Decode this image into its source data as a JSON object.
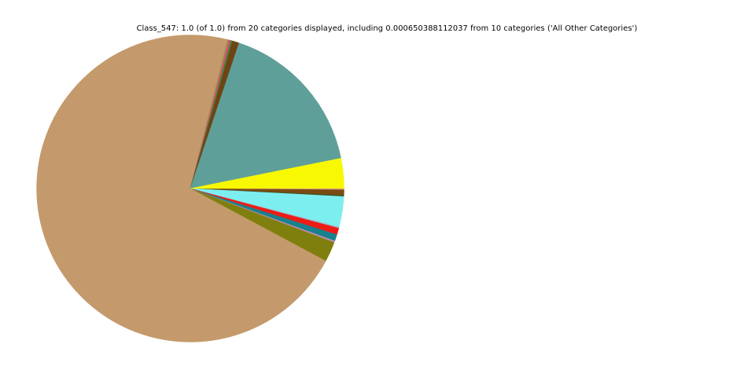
{
  "title": {
    "text": "Class_547: 1.0 (of 1.0) from 20 categories displayed, including 0.000650388112037 from 10 categories ('All Other Categories')"
  },
  "background_color": "#ffffff",
  "chart_data": {
    "type": "pie",
    "title": "Class_547: 1.0 (of 1.0) from 20 categories displayed, including 0.000650388112037 from 10 categories ('All Other Categories')",
    "legend_position": "none",
    "labels_shown": false,
    "start_angle_deg": 0,
    "direction": "clockwise",
    "slices": [
      {
        "fraction": 0.00139,
        "color": "#cc8899"
      },
      {
        "fraction": 0.00556,
        "color": "#7b4a12"
      },
      {
        "fraction": 0.00139,
        "color": "#435022"
      },
      {
        "fraction": 0.03194,
        "color": "#7deef0"
      },
      {
        "fraction": 0.00139,
        "color": "#9fb6c9"
      },
      {
        "fraction": 0.00694,
        "color": "#ed1c16"
      },
      {
        "fraction": 0.00694,
        "color": "#17818d"
      },
      {
        "fraction": 0.00167,
        "color": "#c68cb5"
      },
      {
        "fraction": 0.02111,
        "color": "#7f7f0e"
      },
      {
        "fraction": 0.71056,
        "color": "#c49a6c"
      },
      {
        "fraction": 0.00167,
        "color": "#9d9148"
      },
      {
        "fraction": 0.00194,
        "color": "#e1447e"
      },
      {
        "fraction": 0.00167,
        "color": "#2f9130"
      },
      {
        "fraction": 0.00722,
        "color": "#6f4414"
      },
      {
        "fraction": 0.16694,
        "color": "#5f9f99"
      },
      {
        "fraction": 0.03167,
        "color": "#f8f803"
      }
    ]
  }
}
